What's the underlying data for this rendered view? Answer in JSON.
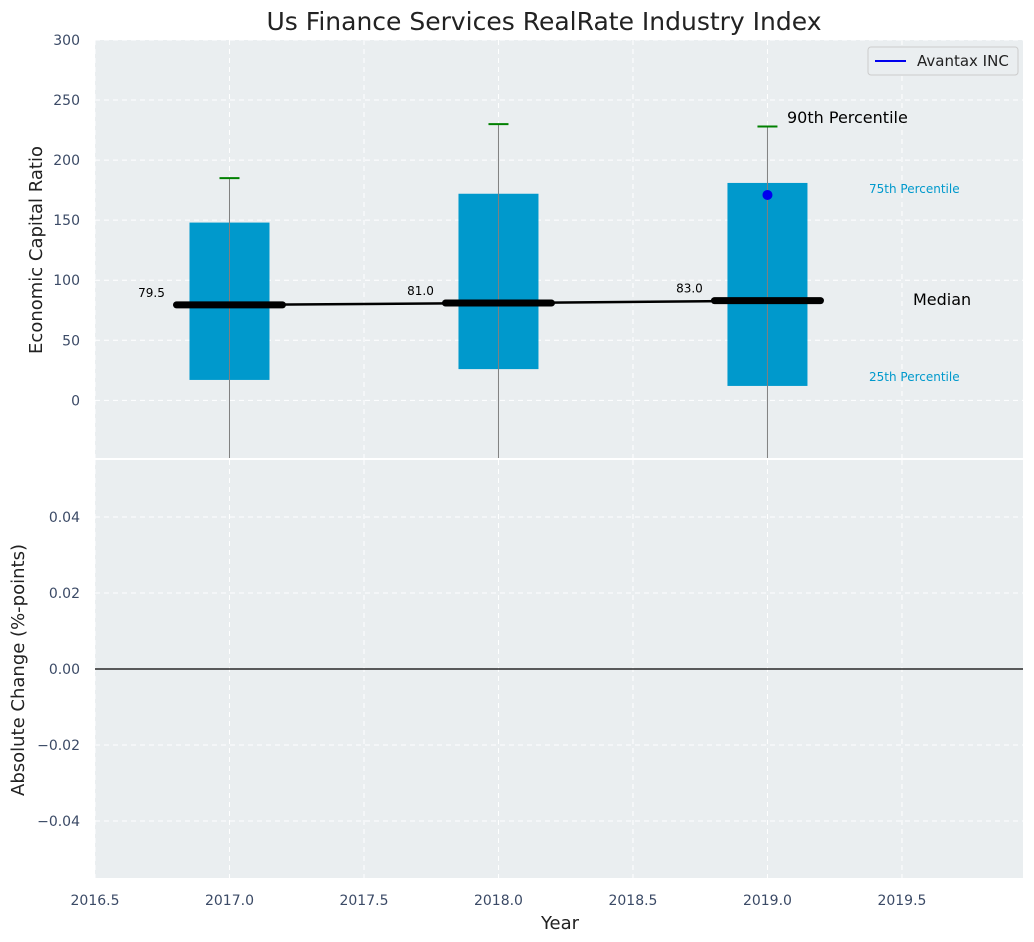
{
  "chart_data": [
    {
      "type": "box",
      "title": "Us Finance Services RealRate Industry Index",
      "xlabel": "",
      "ylabel": "Economic Capital Ratio",
      "ylim": [
        -48,
        300
      ],
      "y_ticks": [
        "0",
        "50",
        "100",
        "150",
        "200",
        "250",
        "300"
      ],
      "x": [
        2017,
        2018,
        2019
      ],
      "percentile_25": [
        17,
        26,
        12
      ],
      "percentile_75": [
        148,
        172,
        181
      ],
      "median": [
        79.5,
        81.0,
        83.0
      ],
      "percentile_90": [
        185,
        230,
        228
      ],
      "median_labels": [
        "79.5",
        "81.0",
        "83.0"
      ],
      "company": {
        "name": "Avantax INC",
        "x": [
          2019
        ],
        "values": [
          171
        ],
        "color": "#0000ee"
      },
      "annotations": {
        "p90": "90th Percentile",
        "p75": "75th Percentile",
        "median": "Median",
        "p25": "25th Percentile"
      },
      "legend": {
        "placement": "top-right",
        "entries": [
          "Avantax INC"
        ]
      },
      "grid": true,
      "colors": {
        "box": "#0099cc",
        "whisker_cap": "#008000",
        "median": "#000000",
        "background": "#eaeef0",
        "company": "#0000ee"
      }
    },
    {
      "type": "line",
      "title": "",
      "xlabel": "Year",
      "ylabel": "Absolute Change (%-points)",
      "ylim": [
        -0.055,
        0.055
      ],
      "y_ticks": [
        "−0.04",
        "−0.02",
        "0.00",
        "0.02",
        "0.04"
      ],
      "xlim": [
        2016.5,
        2019.95
      ],
      "x_ticks": [
        "2016.5",
        "2017.0",
        "2017.5",
        "2018.0",
        "2018.5",
        "2019.0",
        "2019.5"
      ],
      "reference_line": 0,
      "series": [],
      "grid": true
    }
  ]
}
